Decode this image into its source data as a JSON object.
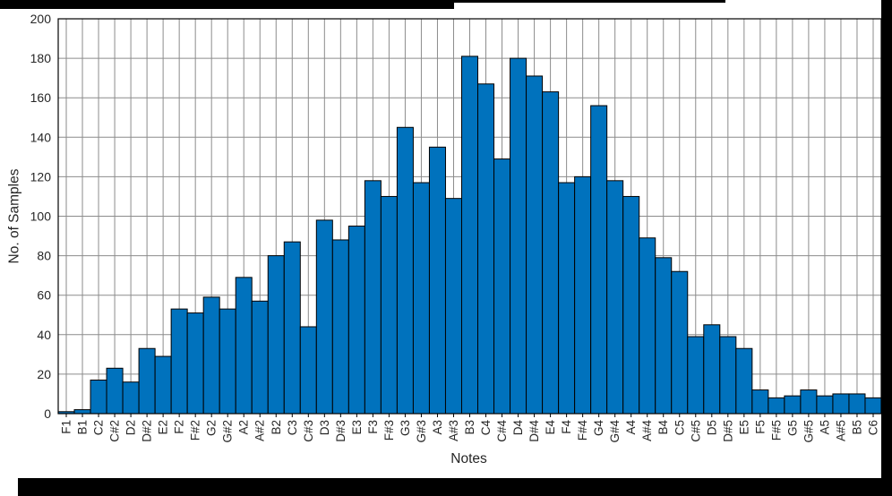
{
  "chart_data": {
    "type": "bar",
    "title": "",
    "xlabel": "Notes",
    "ylabel": "No. of Samples",
    "categories": [
      "F1",
      "B1",
      "C2",
      "C#2",
      "D2",
      "D#2",
      "E2",
      "F2",
      "F#2",
      "G2",
      "G#2",
      "A2",
      "A#2",
      "B2",
      "C3",
      "C#3",
      "D3",
      "D#3",
      "E3",
      "F3",
      "F#3",
      "G3",
      "G#3",
      "A3",
      "A#3",
      "B3",
      "C4",
      "C#4",
      "D4",
      "D#4",
      "E4",
      "F4",
      "F#4",
      "G4",
      "G#4",
      "A4",
      "A#4",
      "B4",
      "C5",
      "C#5",
      "D5",
      "D#5",
      "E5",
      "F5",
      "F#5",
      "G5",
      "G#5",
      "A5",
      "A#5",
      "B5",
      "C6"
    ],
    "values": [
      1,
      2,
      17,
      23,
      16,
      33,
      29,
      53,
      51,
      59,
      53,
      69,
      57,
      80,
      87,
      44,
      98,
      88,
      95,
      118,
      110,
      145,
      117,
      135,
      109,
      181,
      167,
      129,
      180,
      171,
      163,
      117,
      120,
      156,
      118,
      110,
      89,
      79,
      72,
      39,
      45,
      39,
      33,
      12,
      8,
      9,
      12,
      9,
      10,
      10,
      8
    ],
    "ylim": [
      0,
      200
    ],
    "yticks": [
      0,
      20,
      40,
      60,
      80,
      100,
      120,
      140,
      160,
      180,
      200
    ],
    "grid": true,
    "legend": null,
    "colors": {
      "bar_fill": "#0072BD",
      "bar_edge": "#000000",
      "grid": "#8c8c8c",
      "axis_box": "#000000",
      "tick_text": "#262626",
      "label_text": "#262626",
      "background": "#ffffff"
    }
  }
}
